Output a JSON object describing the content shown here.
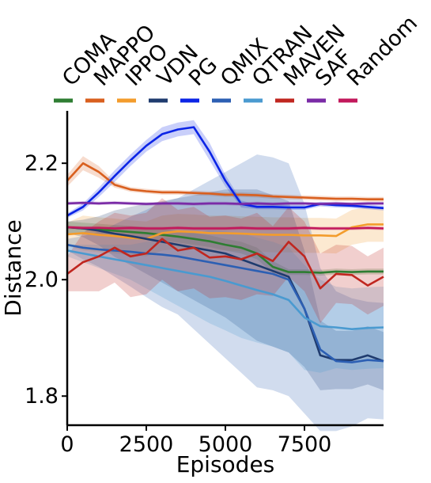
{
  "chart_data": {
    "type": "line",
    "title": "",
    "xlabel": "Episodes",
    "ylabel": "Distance",
    "xlim": [
      0,
      10000
    ],
    "ylim": [
      1.75,
      2.29
    ],
    "x_ticks": [
      0,
      2500,
      5000,
      7500
    ],
    "x_tick_labels": [
      "0",
      "2500",
      "5000",
      "7500"
    ],
    "y_ticks": [
      1.8,
      2.0,
      2.2
    ],
    "y_tick_labels": [
      "1.8",
      "2.0",
      "2.2"
    ],
    "grid": false,
    "legend_position": "top",
    "x": [
      0,
      500,
      1000,
      1500,
      2000,
      2500,
      3000,
      3500,
      4000,
      4500,
      5000,
      5500,
      6000,
      6500,
      7000,
      7500,
      8000,
      8500,
      9000,
      9500,
      10000
    ],
    "series": [
      {
        "name": "COMA",
        "color": "#2e7d32",
        "values": [
          2.09,
          2.088,
          2.086,
          2.084,
          2.082,
          2.08,
          2.077,
          2.074,
          2.07,
          2.066,
          2.06,
          2.055,
          2.045,
          2.022,
          2.013,
          2.013,
          2.012,
          2.014,
          2.013,
          2.014,
          2.014
        ],
        "band": [
          0.01,
          0.01,
          0.01,
          0.01,
          0.01,
          0.01,
          0.01,
          0.01,
          0.01,
          0.01,
          0.01,
          0.01,
          0.01,
          0.01,
          0.005,
          0.005,
          0.005,
          0.005,
          0.005,
          0.005,
          0.005
        ]
      },
      {
        "name": "MAPPO",
        "color": "#d95f1e",
        "values": [
          2.17,
          2.2,
          2.185,
          2.163,
          2.155,
          2.152,
          2.15,
          2.15,
          2.149,
          2.148,
          2.146,
          2.146,
          2.145,
          2.143,
          2.142,
          2.141,
          2.14,
          2.139,
          2.139,
          2.138,
          2.138
        ],
        "band": [
          0.01,
          0.012,
          0.01,
          0.005,
          0.004,
          0.004,
          0.004,
          0.004,
          0.004,
          0.004,
          0.004,
          0.004,
          0.004,
          0.004,
          0.004,
          0.004,
          0.004,
          0.004,
          0.004,
          0.004,
          0.004
        ]
      },
      {
        "name": "IPPO",
        "color": "#f39c2c",
        "values": [
          2.078,
          2.08,
          2.077,
          2.075,
          2.072,
          2.07,
          2.08,
          2.083,
          2.082,
          2.08,
          2.08,
          2.079,
          2.078,
          2.077,
          2.077,
          2.076,
          2.076,
          2.075,
          2.09,
          2.095,
          2.095
        ],
        "band": [
          0.02,
          0.03,
          0.03,
          0.03,
          0.03,
          0.03,
          0.03,
          0.03,
          0.03,
          0.03,
          0.03,
          0.03,
          0.03,
          0.03,
          0.03,
          0.03,
          0.03,
          0.03,
          0.03,
          0.03,
          0.03
        ]
      },
      {
        "name": "VDN",
        "color": "#1f3b6e",
        "values": [
          2.09,
          2.088,
          2.084,
          2.079,
          2.075,
          2.07,
          2.065,
          2.06,
          2.055,
          2.05,
          2.045,
          2.035,
          2.025,
          2.015,
          2.005,
          1.95,
          1.87,
          1.862,
          1.862,
          1.87,
          1.86
        ],
        "band": [
          0.01,
          0.015,
          0.025,
          0.04,
          0.05,
          0.06,
          0.07,
          0.08,
          0.09,
          0.1,
          0.11,
          0.12,
          0.13,
          0.13,
          0.13,
          0.1,
          0.06,
          0.05,
          0.05,
          0.05,
          0.05
        ]
      },
      {
        "name": "PG",
        "color": "#0b24e6",
        "values": [
          2.11,
          2.125,
          2.15,
          2.178,
          2.205,
          2.23,
          2.25,
          2.258,
          2.262,
          2.22,
          2.17,
          2.13,
          2.125,
          2.125,
          2.124,
          2.124,
          2.13,
          2.128,
          2.127,
          2.125,
          2.123
        ],
        "band": [
          0.004,
          0.006,
          0.008,
          0.01,
          0.01,
          0.01,
          0.012,
          0.012,
          0.012,
          0.015,
          0.01,
          0.006,
          0.004,
          0.004,
          0.004,
          0.004,
          0.004,
          0.004,
          0.004,
          0.004,
          0.004
        ]
      },
      {
        "name": "QMIX",
        "color": "#2c5fb3",
        "values": [
          2.06,
          2.055,
          2.052,
          2.05,
          2.048,
          2.045,
          2.043,
          2.04,
          2.035,
          2.03,
          2.025,
          2.02,
          2.015,
          2.01,
          2.0,
          1.95,
          1.88,
          1.86,
          1.858,
          1.862,
          1.86
        ],
        "band": [
          0.01,
          0.02,
          0.03,
          0.045,
          0.06,
          0.075,
          0.09,
          0.1,
          0.12,
          0.14,
          0.16,
          0.18,
          0.2,
          0.2,
          0.2,
          0.18,
          0.14,
          0.12,
          0.11,
          0.1,
          0.1
        ]
      },
      {
        "name": "QTRAN",
        "color": "#4a9ad0",
        "values": [
          2.05,
          2.045,
          2.04,
          2.035,
          2.03,
          2.025,
          2.02,
          2.015,
          2.01,
          2.005,
          1.998,
          1.99,
          1.982,
          1.975,
          1.965,
          1.935,
          1.92,
          1.918,
          1.915,
          1.917,
          1.918
        ],
        "band": [
          0.01,
          0.015,
          0.02,
          0.025,
          0.03,
          0.04,
          0.05,
          0.06,
          0.07,
          0.08,
          0.085,
          0.09,
          0.09,
          0.09,
          0.09,
          0.09,
          0.08,
          0.07,
          0.07,
          0.07,
          0.07
        ]
      },
      {
        "name": "MAVEN",
        "color": "#c0261f",
        "values": [
          2.01,
          2.03,
          2.04,
          2.055,
          2.04,
          2.045,
          2.07,
          2.05,
          2.055,
          2.038,
          2.04,
          2.035,
          2.045,
          2.032,
          2.065,
          2.04,
          1.985,
          2.01,
          2.008,
          1.99,
          2.005
        ],
        "band": [
          0.03,
          0.05,
          0.06,
          0.06,
          0.07,
          0.07,
          0.07,
          0.07,
          0.07,
          0.07,
          0.07,
          0.07,
          0.07,
          0.06,
          0.06,
          0.06,
          0.06,
          0.05,
          0.05,
          0.05,
          0.05
        ]
      },
      {
        "name": "SAF",
        "color": "#7a2aa6",
        "values": [
          2.131,
          2.132,
          2.131,
          2.132,
          2.131,
          2.13,
          2.131,
          2.131,
          2.13,
          2.131,
          2.131,
          2.13,
          2.131,
          2.13,
          2.131,
          2.131,
          2.13,
          2.131,
          2.13,
          2.131,
          2.131
        ],
        "band": [
          0.003,
          0.003,
          0.003,
          0.003,
          0.003,
          0.003,
          0.003,
          0.003,
          0.003,
          0.003,
          0.003,
          0.003,
          0.003,
          0.003,
          0.003,
          0.003,
          0.003,
          0.003,
          0.003,
          0.003,
          0.003
        ]
      },
      {
        "name": "Random",
        "color": "#c2185b",
        "values": [
          2.09,
          2.089,
          2.089,
          2.088,
          2.089,
          2.088,
          2.088,
          2.089,
          2.088,
          2.088,
          2.088,
          2.089,
          2.088,
          2.088,
          2.088,
          2.089,
          2.088,
          2.088,
          2.088,
          2.089,
          2.088
        ],
        "band": [
          0.003,
          0.003,
          0.003,
          0.003,
          0.003,
          0.003,
          0.003,
          0.003,
          0.003,
          0.003,
          0.003,
          0.003,
          0.003,
          0.003,
          0.003,
          0.003,
          0.003,
          0.003,
          0.003,
          0.003,
          0.003
        ]
      }
    ]
  }
}
